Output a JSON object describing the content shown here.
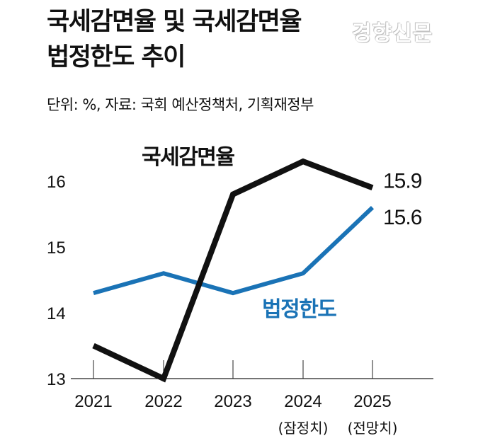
{
  "title_lines": [
    "국세감면율 및 국세감면율",
    "법정한도 추이"
  ],
  "watermark": "경향신문",
  "source": "단위: %, 자료: 국회 예산정책처, 기획재정부",
  "colors": {
    "series1": "#111111",
    "series2": "#1a73b6",
    "axis": "#222222"
  },
  "chart_data": {
    "type": "line",
    "title": "국세감면율 및 국세감면율 법정한도 추이",
    "unit": "%",
    "categories": [
      "2021",
      "2022",
      "2023",
      "2024",
      "2025"
    ],
    "category_sub": [
      "",
      "",
      "",
      "(잠정치)",
      "(전망치)"
    ],
    "ylim": [
      13,
      16.3
    ],
    "yticks": [
      13,
      14,
      15,
      16
    ],
    "grid": false,
    "series": [
      {
        "name": "국세감면율",
        "values": [
          13.5,
          13.0,
          15.8,
          16.3,
          15.9
        ],
        "end_label": "15.9"
      },
      {
        "name": "법정한도",
        "values": [
          14.3,
          14.6,
          14.3,
          14.6,
          15.6
        ],
        "end_label": "15.6"
      }
    ]
  }
}
